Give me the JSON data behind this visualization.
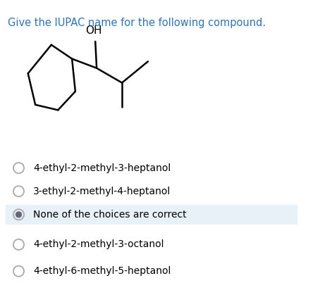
{
  "title": "Give the IUPAC name for the following compound.",
  "title_color": "#2e74b5",
  "title_fontsize": 10.5,
  "background_color": "#ffffff",
  "choices": [
    "4-ethyl-2-methyl-3-heptanol",
    "3-ethyl-2-methyl-4-heptanol",
    "None of the choices are correct",
    "4-ethyl-2-methyl-3-octanol",
    "4-ethyl-6-methyl-5-heptanol"
  ],
  "selected_index": 2,
  "selected_bg": "#e8f0f8",
  "choice_fontsize": 10.0,
  "choice_color": "#000000",
  "radio_color": "#aaaaaa",
  "radio_selected_fill": "#666677",
  "oh_label": "OH",
  "oh_fontsize": 11
}
